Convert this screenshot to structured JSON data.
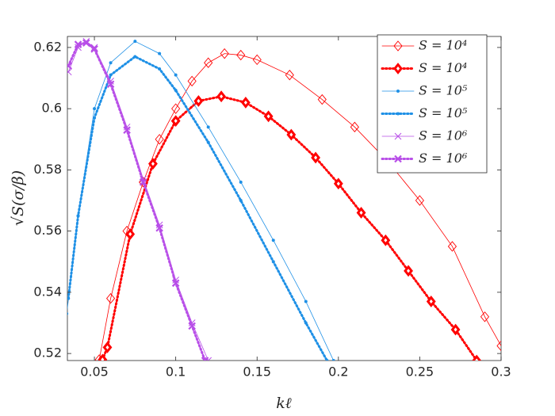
{
  "chart_data": {
    "type": "line",
    "xlabel": "kℓ",
    "ylabel": "√S(σ/β)",
    "xlim": [
      0.0334,
      0.3
    ],
    "ylim": [
      0.5177,
      0.6236
    ],
    "xticks": [
      0.05,
      0.1,
      0.15,
      0.2,
      0.25,
      0.3
    ],
    "yticks": [
      0.52,
      0.54,
      0.56,
      0.58,
      0.6,
      0.62
    ],
    "legend": "upper right",
    "grid": false,
    "series": [
      {
        "name": "S = 10⁴",
        "color": "#ff0000",
        "line_style": "solid",
        "line_width": 0.8,
        "marker": "diamond-open",
        "x": [
          0.053,
          0.06,
          0.07,
          0.08,
          0.09,
          0.1,
          0.11,
          0.12,
          0.13,
          0.14,
          0.15,
          0.17,
          0.19,
          0.21,
          0.23,
          0.25,
          0.27,
          0.29,
          0.3
        ],
        "values": [
          0.518,
          0.538,
          0.56,
          0.576,
          0.59,
          0.6,
          0.609,
          0.615,
          0.618,
          0.6175,
          0.616,
          0.611,
          0.603,
          0.594,
          0.583,
          0.57,
          0.555,
          0.532,
          0.5225
        ]
      },
      {
        "name": "S = 10⁴",
        "color": "#ff0000",
        "line_style": "dotted",
        "line_width": 3,
        "marker": "diamond-thick",
        "x": [
          0.055,
          0.058,
          0.072,
          0.086,
          0.1,
          0.114,
          0.128,
          0.143,
          0.157,
          0.171,
          0.186,
          0.2,
          0.214,
          0.229,
          0.243,
          0.257,
          0.272,
          0.285
        ],
        "values": [
          0.518,
          0.522,
          0.559,
          0.582,
          0.596,
          0.6025,
          0.604,
          0.602,
          0.5975,
          0.5915,
          0.584,
          0.5755,
          0.566,
          0.557,
          0.547,
          0.537,
          0.5278,
          0.5177
        ]
      },
      {
        "name": "S = 10⁵",
        "color": "#1e90e6",
        "line_style": "solid",
        "line_width": 0.8,
        "marker": "dot",
        "x": [
          0.033,
          0.04,
          0.05,
          0.06,
          0.075,
          0.09,
          0.1,
          0.12,
          0.14,
          0.16,
          0.18,
          0.197
        ],
        "values": [
          0.533,
          0.565,
          0.6,
          0.615,
          0.622,
          0.618,
          0.611,
          0.594,
          0.576,
          0.557,
          0.537,
          0.5177
        ]
      },
      {
        "name": "S = 10⁵",
        "color": "#1e90e6",
        "line_style": "dotted",
        "line_width": 3,
        "marker": "dot",
        "x": [
          0.034,
          0.04,
          0.05,
          0.06,
          0.075,
          0.09,
          0.1,
          0.12,
          0.14,
          0.16,
          0.18,
          0.193
        ],
        "values": [
          0.538,
          0.565,
          0.597,
          0.611,
          0.617,
          0.613,
          0.606,
          0.589,
          0.57,
          0.55,
          0.53,
          0.5177
        ]
      },
      {
        "name": "S = 10⁶",
        "color": "#b84ee8",
        "line_style": "solid",
        "line_width": 0.8,
        "marker": "x",
        "x": [
          0.034,
          0.04,
          0.045,
          0.05,
          0.06,
          0.07,
          0.08,
          0.09,
          0.1,
          0.11,
          0.12
        ],
        "values": [
          0.612,
          0.62,
          0.622,
          0.62,
          0.609,
          0.594,
          0.577,
          0.562,
          0.544,
          0.53,
          0.5177
        ]
      },
      {
        "name": "S = 10⁶",
        "color": "#b84ee8",
        "line_style": "dotted",
        "line_width": 3,
        "marker": "x",
        "x": [
          0.034,
          0.04,
          0.045,
          0.05,
          0.06,
          0.07,
          0.08,
          0.09,
          0.1,
          0.11,
          0.118
        ],
        "values": [
          0.614,
          0.621,
          0.6215,
          0.6195,
          0.608,
          0.593,
          0.576,
          0.561,
          0.543,
          0.529,
          0.5177
        ]
      }
    ]
  }
}
